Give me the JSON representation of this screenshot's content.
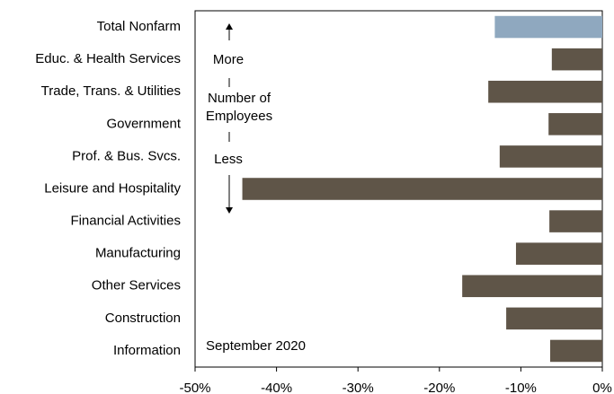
{
  "chart_data": {
    "type": "barh",
    "categories": [
      "Total Nonfarm",
      "Educ. & Health Services",
      "Trade, Trans. & Utilities",
      "Government",
      "Prof. & Bus. Svcs.",
      "Leisure and Hospitality",
      "Financial Activities",
      "Manufacturing",
      "Other Services",
      "Construction",
      "Information"
    ],
    "values": [
      -13.2,
      -6.2,
      -14.0,
      -6.6,
      -12.6,
      -44.2,
      -6.5,
      -10.6,
      -17.2,
      -11.8,
      -6.4
    ],
    "colors": [
      "#8fa8bf",
      "#5f5548",
      "#5f5548",
      "#5f5548",
      "#5f5548",
      "#5f5548",
      "#5f5548",
      "#5f5548",
      "#5f5548",
      "#5f5548",
      "#5f5548"
    ],
    "xlim": [
      -50,
      0
    ],
    "xticks": [
      {
        "value": -50,
        "label": "-50%"
      },
      {
        "value": -40,
        "label": "-40%"
      },
      {
        "value": -30,
        "label": "-30%"
      },
      {
        "value": -20,
        "label": "-20%"
      },
      {
        "value": -10,
        "label": "-10%"
      },
      {
        "value": 0,
        "label": "0%"
      }
    ],
    "annotations": {
      "more": "More",
      "middle": [
        "Number of",
        "Employees"
      ],
      "less": "Less",
      "date": "September 2020"
    }
  }
}
